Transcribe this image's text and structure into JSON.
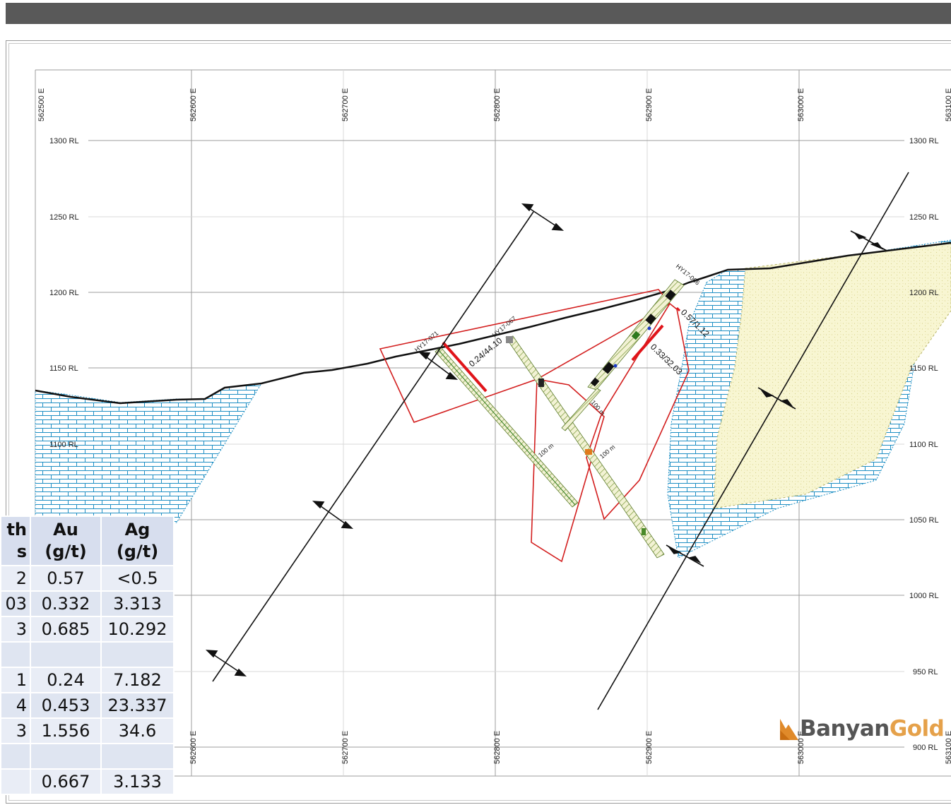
{
  "easting_labels_top": [
    "562500 E",
    "562600 E",
    "562700 E",
    "562800 E",
    "562900 E",
    "563000 E",
    "563100 E"
  ],
  "easting_labels_bottom": [
    "562600 E",
    "562700 E",
    "562800 E",
    "562900 E",
    "563000 E",
    "563100 E"
  ],
  "rl_labels_left": [
    "1300 RL",
    "1250 RL",
    "1200 RL",
    "1150 RL",
    "1100 RL"
  ],
  "rl_labels_right": [
    "1300 RL",
    "1250 RL",
    "1200 RL",
    "1150 RL",
    "1100 RL",
    "1050 RL",
    "1000 RL",
    "950 RL",
    "900 RL"
  ],
  "drillholes": [
    {
      "id": "HY17-071",
      "label": "HY17-071",
      "intercept": "0.24/44.10"
    },
    {
      "id": "HY17-067",
      "label": "HY17-067",
      "intercept": ""
    },
    {
      "id": "HY17-066",
      "label": "HY17-066",
      "intercept": "0.57/1.12"
    },
    {
      "id": "HY17-066-b",
      "label": "",
      "intercept": "0.33/32.03"
    }
  ],
  "depth_labels": [
    "100 m",
    "100 m",
    "100 m"
  ],
  "table": {
    "headers": [
      "th\ns",
      "Au\n(g/t)",
      "Ag\n(g/t)"
    ],
    "rows": [
      [
        "2",
        "0.57",
        "<0.5"
      ],
      [
        "03",
        "0.332",
        "3.313"
      ],
      [
        "3",
        "0.685",
        "10.292"
      ],
      [
        "",
        "",
        ""
      ],
      [
        "1",
        "0.24",
        "7.182"
      ],
      [
        "4",
        "0.453",
        "23.337"
      ],
      [
        "3",
        "1.556",
        "34.6"
      ],
      [
        "",
        "",
        ""
      ],
      [
        "",
        "0.667",
        "3.133"
      ]
    ]
  },
  "logo": {
    "part1": "Banyan",
    "part2": "Gold"
  },
  "colors": {
    "limestone": "#1f8fc4",
    "sediment_fill": "#f7f5c9",
    "structure_box": "#d31f1f",
    "intercept_bar": "#e0141a"
  }
}
